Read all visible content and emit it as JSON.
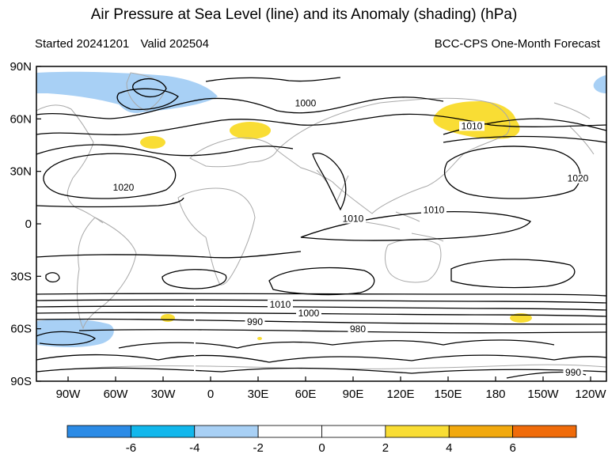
{
  "header": {
    "title": "Air Pressure at Sea Level (line) and its Anomaly (shading) (hPa)",
    "started": "Started 20241201",
    "valid": "Valid 202504",
    "source": "BCC-CPS One-Month Forecast"
  },
  "map": {
    "lat_labels": [
      "90N",
      "60N",
      "30N",
      "0",
      "30S",
      "60S",
      "90S"
    ],
    "lat_values": [
      90,
      60,
      30,
      0,
      -30,
      -60,
      -90
    ],
    "lon_labels": [
      "90W",
      "60W",
      "30W",
      "0",
      "30E",
      "60E",
      "90E",
      "120E",
      "150E",
      "180",
      "150W",
      "120W"
    ],
    "lon_values": [
      -90,
      -60,
      -30,
      0,
      30,
      60,
      90,
      120,
      150,
      180,
      210,
      240
    ],
    "lon_range": [
      -110,
      250
    ],
    "lat_range": [
      -90,
      90
    ],
    "contour_labels": [
      {
        "text": "1000",
        "lon": 60,
        "lat": 68
      },
      {
        "text": "1010",
        "lon": 165,
        "lat": 55
      },
      {
        "text": "1020",
        "lon": -55,
        "lat": 20
      },
      {
        "text": "1020",
        "lon": 232,
        "lat": 25
      },
      {
        "text": "1010",
        "lon": 90,
        "lat": 2
      },
      {
        "text": "1010",
        "lon": 141,
        "lat": 7
      },
      {
        "text": "1010",
        "lon": 44,
        "lat": -47
      },
      {
        "text": "1000",
        "lon": 62,
        "lat": -52
      },
      {
        "text": "990",
        "lon": 28,
        "lat": -57
      },
      {
        "text": "980",
        "lon": 93,
        "lat": -61
      },
      {
        "text": "990",
        "lon": 229,
        "lat": -86
      }
    ],
    "colors": {
      "light_blue": "#a8d0f5",
      "yellow": "#f9dd34",
      "contour": "#000000",
      "land": "#a9a9a9"
    }
  },
  "colorbar": {
    "labels": [
      "-6",
      "-4",
      "-2",
      "0",
      "2",
      "4",
      "6"
    ],
    "colors": [
      "#2b8be6",
      "#11b7ec",
      "#a8d0f5",
      "#ffffff",
      "#ffffff",
      "#f9dd34",
      "#f2a90e",
      "#f06b0a"
    ]
  }
}
